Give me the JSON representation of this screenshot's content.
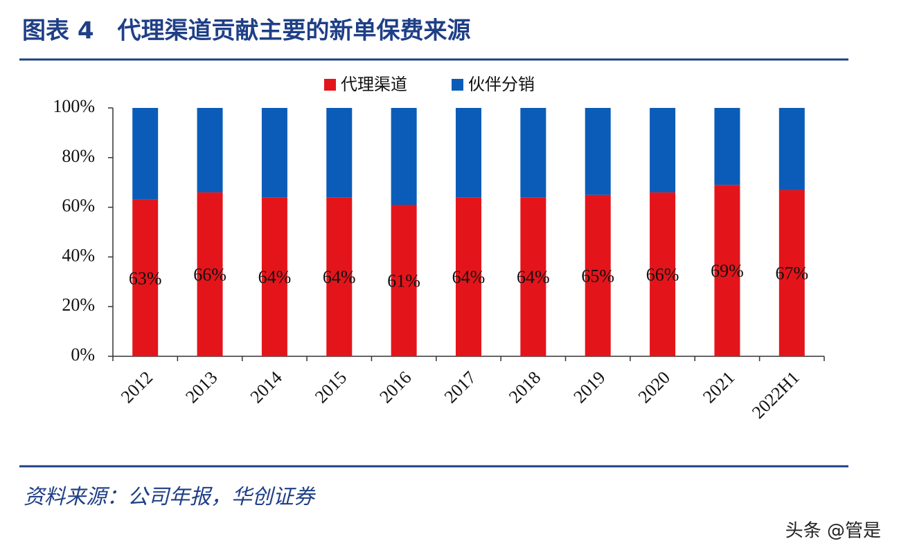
{
  "chart_data": {
    "type": "stacked_bar",
    "title": "图表 4　代理渠道贡献主要的新单保费来源",
    "source": "资料来源：公司年报，华创证券",
    "watermark": "头条 @管是",
    "categories": [
      "2012",
      "2013",
      "2014",
      "2015",
      "2016",
      "2017",
      "2018",
      "2019",
      "2020",
      "2021",
      "2022H1"
    ],
    "series": [
      {
        "name": "代理渠道",
        "color": "#e3151b",
        "values": [
          63,
          66,
          64,
          64,
          61,
          64,
          64,
          65,
          66,
          69,
          67
        ],
        "value_labels": [
          "63%",
          "66%",
          "64%",
          "64%",
          "61%",
          "64%",
          "64%",
          "65%",
          "66%",
          "69%",
          "67%"
        ]
      },
      {
        "name": "伙伴分销",
        "color": "#0a5cb8",
        "values": [
          37,
          34,
          36,
          36,
          39,
          36,
          36,
          35,
          34,
          31,
          33
        ]
      }
    ],
    "ylim": [
      0,
      100
    ],
    "yticks": [
      {
        "value": 0,
        "label": "0%"
      },
      {
        "value": 20,
        "label": "20%"
      },
      {
        "value": 40,
        "label": "40%"
      },
      {
        "value": 60,
        "label": "60%"
      },
      {
        "value": 80,
        "label": "80%"
      },
      {
        "value": 100,
        "label": "100%"
      }
    ]
  }
}
